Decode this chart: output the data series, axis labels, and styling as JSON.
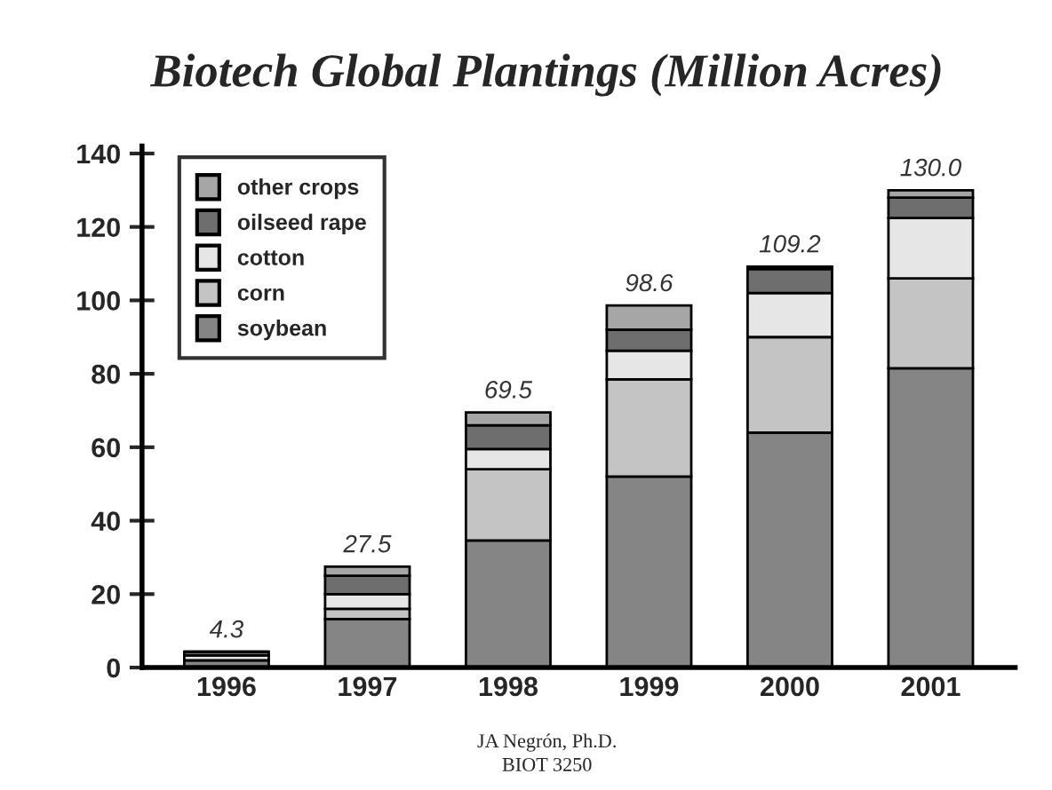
{
  "chart_data": {
    "type": "bar",
    "stacked": true,
    "title": "Biotech Global Plantings (Million Acres)",
    "categories": [
      "1996",
      "1997",
      "1998",
      "1999",
      "2000",
      "2001"
    ],
    "series": [
      {
        "name": "soybean",
        "color": "#858585",
        "values": [
          2.0,
          13.2,
          34.6,
          52,
          64,
          81.5
        ]
      },
      {
        "name": "corn",
        "color": "#c4c4c4",
        "values": [
          null,
          2.8,
          19.4,
          26.5,
          26,
          24.5
        ]
      },
      {
        "name": "cotton",
        "color": "#e6e6e6",
        "values": [
          1.3,
          4.0,
          5.5,
          7.8,
          12,
          16.4
        ]
      },
      {
        "name": "oilseed rape",
        "color": "#6e6e6e",
        "values": [
          1.0,
          5.0,
          6.5,
          5.7,
          6.5,
          5.6
        ]
      },
      {
        "name": "other crops",
        "color": "#a6a6a6",
        "values": [
          null,
          2.5,
          3.5,
          6.6,
          0.7,
          2.0
        ]
      }
    ],
    "totals": [
      "4.3",
      "27.5",
      "69.5",
      "98.6",
      "109.2",
      "130.0"
    ],
    "ylim": [
      0,
      142
    ],
    "yticks": [
      0,
      20,
      40,
      60,
      80,
      100,
      120,
      140
    ],
    "grid": false,
    "legend": "top left",
    "annotations": [
      "JA Negrón, Ph.D.",
      "BIOT 3250"
    ]
  }
}
